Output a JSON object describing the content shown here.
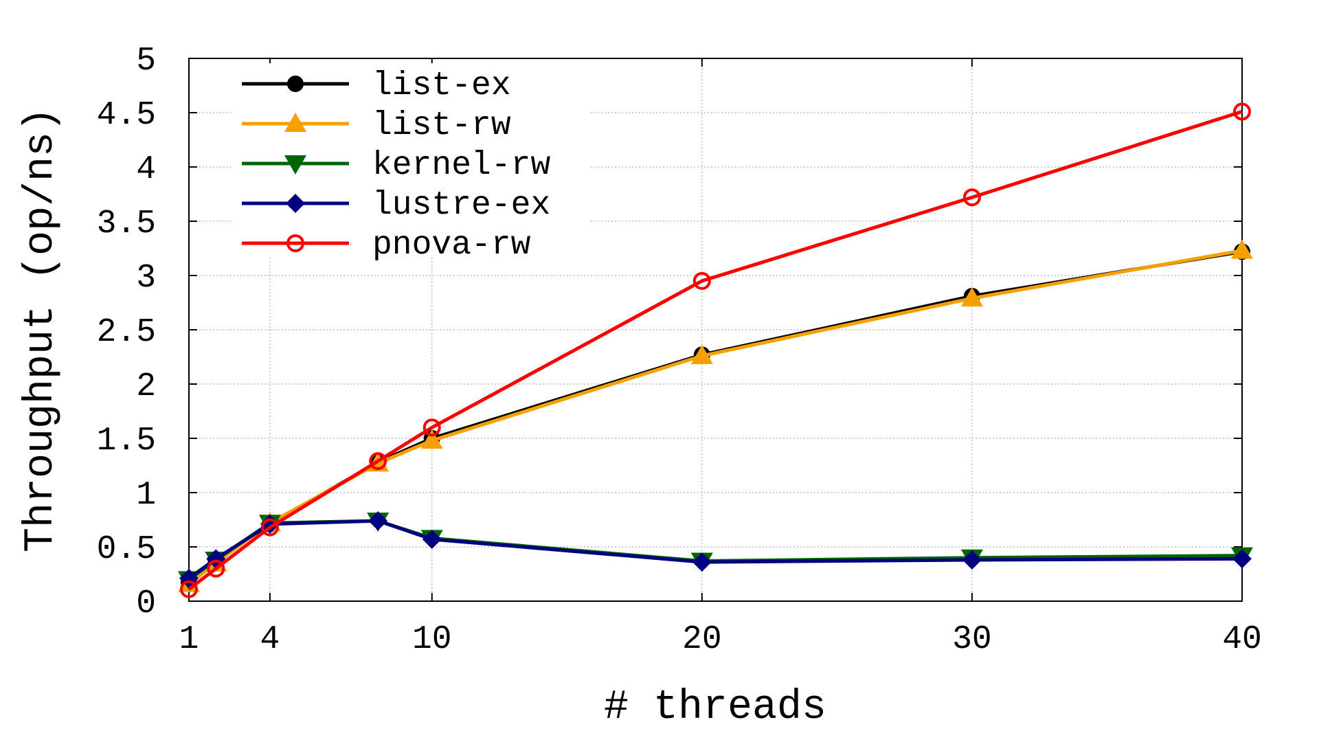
{
  "chart_data": {
    "type": "line",
    "xlabel": "# threads",
    "ylabel": "Throughput (op/ns)",
    "xlim": [
      1,
      40
    ],
    "ylim": [
      0,
      5
    ],
    "x_ticks": [
      1,
      4,
      10,
      20,
      30,
      40
    ],
    "y_ticks": [
      0,
      0.5,
      1,
      1.5,
      2,
      2.5,
      3,
      3.5,
      4,
      4.5,
      5
    ],
    "y_tick_labels": [
      "0",
      "0.5",
      "1",
      "1.5",
      "2",
      "2.5",
      "3",
      "3.5",
      "4",
      "4.5",
      "5"
    ],
    "grid": true,
    "legend_position": "top-left",
    "series": [
      {
        "name": "list-ex",
        "color": "#000000",
        "marker": "filled-circle",
        "x": [
          1,
          2,
          4,
          8,
          10,
          20,
          30,
          40
        ],
        "y": [
          0.17,
          0.37,
          0.71,
          1.28,
          1.5,
          2.27,
          2.81,
          3.22
        ]
      },
      {
        "name": "list-rw",
        "color": "#f5a000",
        "marker": "filled-triangle-up",
        "x": [
          1,
          2,
          4,
          8,
          10,
          20,
          30,
          40
        ],
        "y": [
          0.16,
          0.35,
          0.72,
          1.27,
          1.48,
          2.26,
          2.79,
          3.23
        ]
      },
      {
        "name": "kernel-rw",
        "color": "#006400",
        "marker": "filled-triangle-down",
        "x": [
          1,
          2,
          4,
          8,
          10,
          20,
          30,
          40
        ],
        "y": [
          0.2,
          0.38,
          0.72,
          0.74,
          0.58,
          0.37,
          0.4,
          0.42
        ]
      },
      {
        "name": "lustre-ex",
        "color": "#000080",
        "marker": "filled-diamond",
        "x": [
          1,
          2,
          4,
          8,
          10,
          20,
          30,
          40
        ],
        "y": [
          0.21,
          0.39,
          0.71,
          0.74,
          0.57,
          0.36,
          0.38,
          0.39
        ]
      },
      {
        "name": "pnova-rw",
        "color": "#ff0000",
        "marker": "open-circle",
        "x": [
          1,
          2,
          4,
          8,
          10,
          20,
          30,
          40
        ],
        "y": [
          0.11,
          0.3,
          0.68,
          1.29,
          1.6,
          2.95,
          3.72,
          4.51
        ]
      }
    ]
  }
}
